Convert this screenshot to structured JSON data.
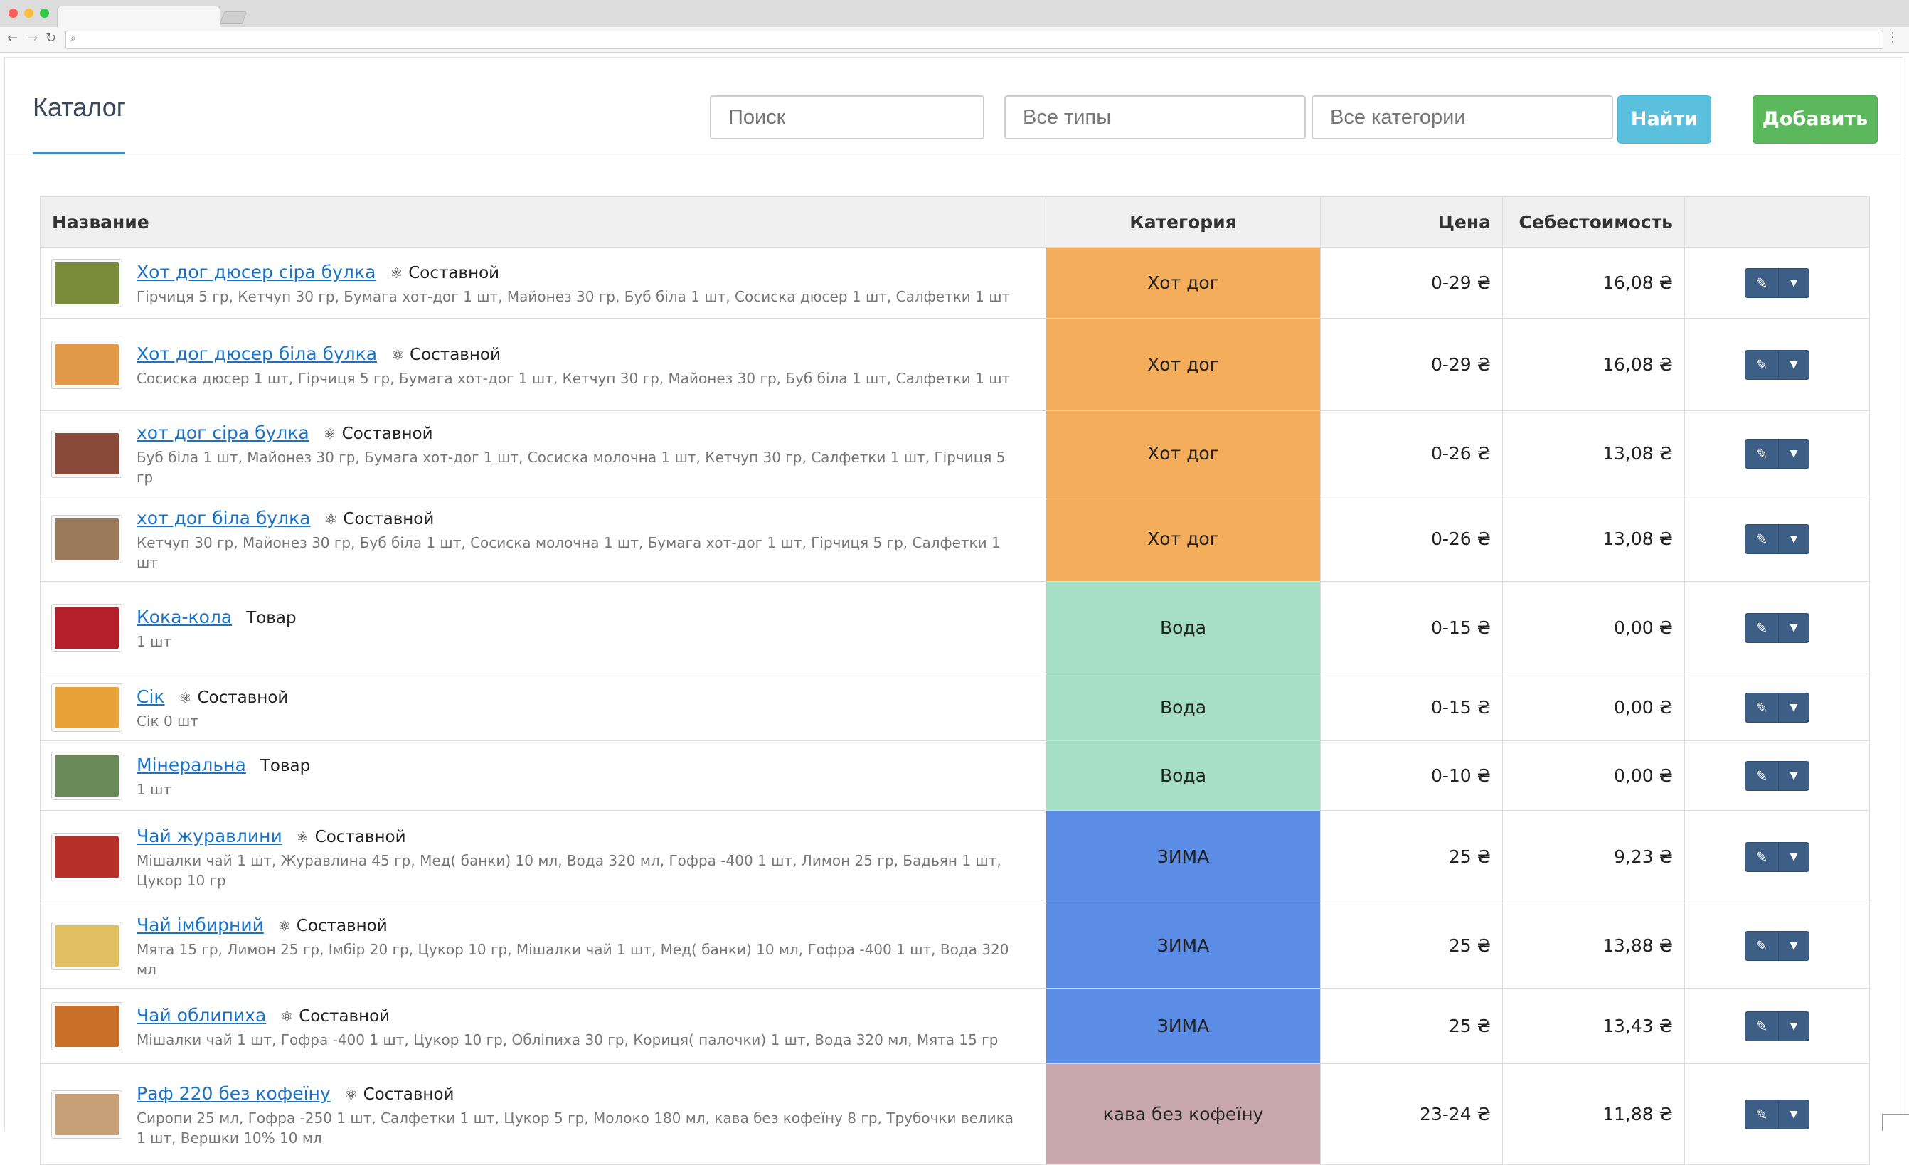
{
  "page": {
    "title": "Каталог",
    "search": {
      "placeholder": "Поиск"
    },
    "types_select": {
      "value": "Все типы"
    },
    "categories_select": {
      "value": "Все категории"
    },
    "find_label": "Найти",
    "add_label": "Добавить"
  },
  "table": {
    "headers": {
      "name": "Название",
      "category": "Категория",
      "price": "Цена",
      "cost": "Себестоимость"
    },
    "rows": [
      {
        "name": "Хот дог дюсер сіра булка",
        "type": "Составной",
        "composite": true,
        "ingredients": "Гірчиця 5 гр, Кетчуп 30 гр, Бумага хот-дог 1 шт, Майонез 30 гр, Буб біла 1 шт, Сосиска дюсер 1 шт, Салфетки 1 шт",
        "category": "Хот дог",
        "category_color": "#f4ad5a",
        "price": "0-29 ₴",
        "cost": "16,08 ₴",
        "thumb_color": "#7a8c3a"
      },
      {
        "name": "Хот дог дюсер біла булка",
        "type": "Составной",
        "composite": true,
        "ingredients": "Сосиска дюсер 1 шт, Гірчиця 5 гр, Бумага хот-дог 1 шт, Кетчуп 30 гр, Майонез 30 гр, Буб біла 1 шт, Салфетки 1 шт",
        "category": "Хот дог",
        "category_color": "#f4ad5a",
        "price": "0-29 ₴",
        "cost": "16,08 ₴",
        "thumb_color": "#e09a4a"
      },
      {
        "name": "хот дог сіра булка",
        "type": "Составной",
        "composite": true,
        "ingredients": "Буб біла 1 шт, Майонез 30 гр, Бумага хот-дог 1 шт, Сосиска молочна 1 шт, Кетчуп 30 гр, Салфетки 1 шт, Гірчиця 5 гр",
        "category": "Хот дог",
        "category_color": "#f4ad5a",
        "price": "0-26 ₴",
        "cost": "13,08 ₴",
        "thumb_color": "#8a4a3a"
      },
      {
        "name": "хот дог біла булка",
        "type": "Составной",
        "composite": true,
        "ingredients": "Кетчуп 30 гр, Майонез 30 гр, Буб біла 1 шт, Сосиска молочна 1 шт, Бумага хот-дог 1 шт, Гірчиця 5 гр, Салфетки 1 шт",
        "category": "Хот дог",
        "category_color": "#f4ad5a",
        "price": "0-26 ₴",
        "cost": "13,08 ₴",
        "thumb_color": "#9a7a5a"
      },
      {
        "name": "Кока-кола",
        "type": "Товар",
        "composite": false,
        "ingredients": "1 шт",
        "category": "Вода",
        "category_color": "#a5dfc3",
        "price": "0-15 ₴",
        "cost": "0,00 ₴",
        "thumb_color": "#b3202a"
      },
      {
        "name": "Сік",
        "type": "Составной",
        "composite": true,
        "ingredients": "Сік 0 шт",
        "category": "Вода",
        "category_color": "#a5dfc3",
        "price": "0-15 ₴",
        "cost": "0,00 ₴",
        "thumb_color": "#e8a23a"
      },
      {
        "name": "Мінеральна",
        "type": "Товар",
        "composite": false,
        "ingredients": "1 шт",
        "category": "Вода",
        "category_color": "#a5dfc3",
        "price": "0-10 ₴",
        "cost": "0,00 ₴",
        "thumb_color": "#6a8a5a"
      },
      {
        "name": "Чай журавлини",
        "type": "Составной",
        "composite": true,
        "ingredients": "Мішалки чай 1 шт, Журавлина 45 гр, Мед( банки) 10 мл, Вода 320 мл, Гофра -400 1 шт, Лимон 25 гр, Бадьян 1 шт, Цукор 10 гр",
        "category": "ЗИМА",
        "category_color": "#5b8ce6",
        "price": "25 ₴",
        "cost": "9,23 ₴",
        "thumb_color": "#b8302a"
      },
      {
        "name": "Чай імбирний",
        "type": "Составной",
        "composite": true,
        "ingredients": "Мята 15 гр, Лимон 25 гр, Імбір 20 гр, Цукор 10 гр, Мішалки чай 1 шт, Мед( банки) 10 мл, Гофра -400 1 шт, Вода 320 мл",
        "category": "ЗИМА",
        "category_color": "#5b8ce6",
        "price": "25 ₴",
        "cost": "13,88 ₴",
        "thumb_color": "#e0c060"
      },
      {
        "name": "Чай облипиха",
        "type": "Составной",
        "composite": true,
        "ingredients": "Мішалки чай 1 шт, Гофра -400 1 шт, Цукор 10 гр, Обліпиха 30 гр, Кориця( палочки) 1 шт, Вода 320 мл, Мята 15 гр",
        "category": "ЗИМА",
        "category_color": "#5b8ce6",
        "price": "25 ₴",
        "cost": "13,43 ₴",
        "thumb_color": "#c8702a"
      },
      {
        "name": "Раф 220 без кофеїну",
        "type": "Составной",
        "composite": true,
        "ingredients": "Сиропи 25 мл, Гофра -250 1 шт, Салфетки 1 шт, Цукор 5 гр, Молоко 180 мл, кава без кофеїну 8 гр, Трубочки велика 1 шт, Вершки 10% 10 мл",
        "category": "кава без кофеїну",
        "category_color": "#c9a8ad",
        "price": "23-24 ₴",
        "cost": "11,88 ₴",
        "thumb_color": "#c8a078"
      }
    ]
  }
}
